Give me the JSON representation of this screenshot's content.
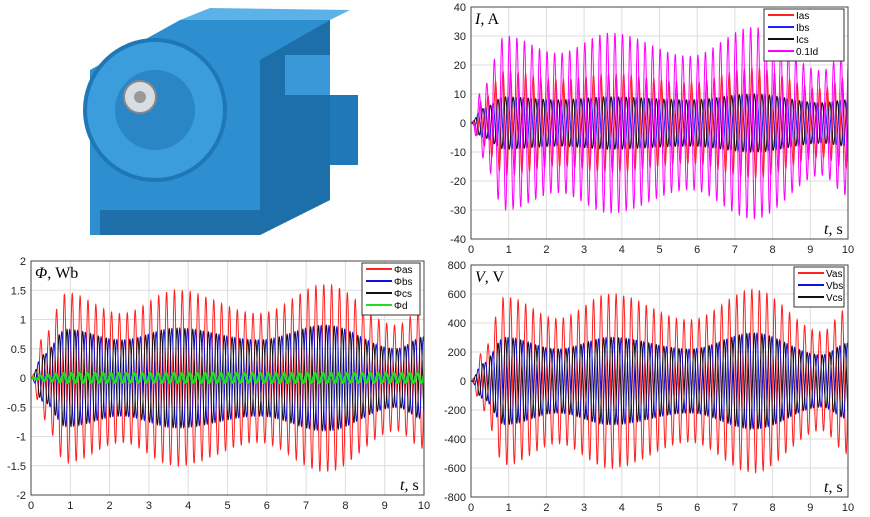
{
  "chart_data": [
    {
      "type": "line",
      "id": "current",
      "ylabel_sym": "I",
      "ylabel_unit": ", A",
      "xlabel_sym": "t",
      "xlabel_unit": ", s",
      "xlim": [
        0,
        10
      ],
      "ylim": [
        -40,
        40
      ],
      "xticks": [
        0,
        1,
        2,
        3,
        4,
        5,
        6,
        7,
        8,
        9,
        10
      ],
      "yticks": [
        -40,
        -30,
        -20,
        -10,
        0,
        10,
        20,
        30,
        40
      ],
      "grid": true,
      "legend": "top-right",
      "frequency_hz": 5,
      "envelope_t": [
        0,
        0.3,
        0.9,
        2.3,
        3.7,
        5.8,
        7.5,
        9.3,
        10
      ],
      "series": [
        {
          "name": "Ias",
          "color": "#ff2020",
          "phase": 0,
          "envelope": [
            0,
            8,
            18,
            15,
            17,
            14,
            19,
            12,
            16
          ]
        },
        {
          "name": "Ibs",
          "color": "#2020ff",
          "phase": 2.09,
          "envelope": [
            0,
            5,
            9,
            8,
            9,
            8,
            10,
            7,
            8
          ]
        },
        {
          "name": "Ics",
          "color": "#111111",
          "phase": 4.19,
          "envelope": [
            0,
            5,
            9,
            8,
            9,
            8,
            10,
            7,
            8
          ]
        },
        {
          "name": "0.1Id",
          "color": "#ff00ff",
          "phase": 1.0,
          "envelope": [
            0,
            12,
            30,
            24,
            31,
            23,
            33,
            18,
            25
          ]
        }
      ]
    },
    {
      "type": "line",
      "id": "flux",
      "ylabel_sym": "Φ",
      "ylabel_unit": ", Wb",
      "xlabel_sym": "t",
      "xlabel_unit": ", s",
      "xlim": [
        0,
        10
      ],
      "ylim": [
        -2,
        2
      ],
      "xticks": [
        0,
        1,
        2,
        3,
        4,
        5,
        6,
        7,
        8,
        9,
        10
      ],
      "yticks": [
        -2,
        -1.5,
        -1,
        -0.5,
        0,
        0.5,
        1,
        1.5,
        2
      ],
      "grid": true,
      "legend": "top-right",
      "frequency_hz": 5,
      "envelope_t": [
        0,
        0.3,
        0.9,
        2.3,
        3.7,
        5.8,
        7.5,
        9.3,
        10
      ],
      "series": [
        {
          "name": "Φas",
          "color": "#ff2020",
          "phase": 0,
          "envelope": [
            0,
            0.7,
            1.45,
            1.1,
            1.5,
            1.1,
            1.6,
            0.9,
            1.2
          ]
        },
        {
          "name": "Φbs",
          "color": "#1010dd",
          "phase": 2.09,
          "envelope": [
            0,
            0.4,
            0.83,
            0.65,
            0.85,
            0.65,
            0.9,
            0.5,
            0.7
          ]
        },
        {
          "name": "Φcs",
          "color": "#111111",
          "phase": 4.19,
          "envelope": [
            0,
            0.4,
            0.83,
            0.65,
            0.85,
            0.65,
            0.9,
            0.5,
            0.7
          ]
        },
        {
          "name": "Φd",
          "color": "#22dd22",
          "phase": 0.5,
          "envelope": [
            0,
            0.05,
            0.08,
            0.08,
            0.08,
            0.08,
            0.08,
            0.08,
            0.08
          ]
        }
      ]
    },
    {
      "type": "line",
      "id": "voltage",
      "ylabel_sym": "V",
      "ylabel_unit": ", V",
      "xlabel_sym": "t",
      "xlabel_unit": ", s",
      "xlim": [
        0,
        10
      ],
      "ylim": [
        -800,
        800
      ],
      "xticks": [
        0,
        1,
        2,
        3,
        4,
        5,
        6,
        7,
        8,
        9,
        10
      ],
      "yticks": [
        -800,
        -600,
        -400,
        -200,
        0,
        200,
        400,
        600,
        800
      ],
      "grid": true,
      "legend": "top-right",
      "frequency_hz": 5,
      "envelope_t": [
        0,
        0.3,
        0.9,
        2.3,
        3.7,
        5.8,
        7.5,
        9.3,
        10
      ],
      "series": [
        {
          "name": "Vas",
          "color": "#ff2020",
          "phase": 0,
          "envelope": [
            0,
            200,
            580,
            430,
            600,
            420,
            630,
            340,
            500
          ]
        },
        {
          "name": "Vbs",
          "color": "#1010dd",
          "phase": 2.09,
          "envelope": [
            0,
            120,
            300,
            220,
            300,
            220,
            330,
            180,
            260
          ]
        },
        {
          "name": "Vcs",
          "color": "#111111",
          "phase": 4.19,
          "envelope": [
            0,
            120,
            300,
            220,
            300,
            220,
            330,
            180,
            260
          ]
        }
      ]
    }
  ]
}
